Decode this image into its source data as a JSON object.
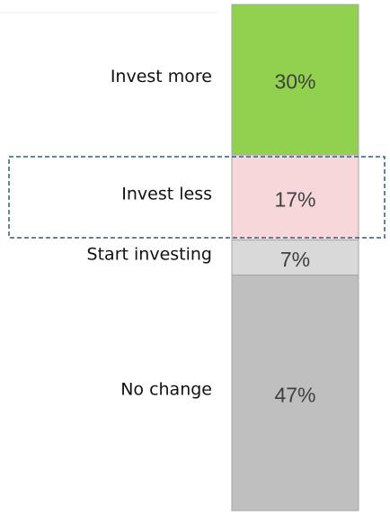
{
  "chart_data": {
    "type": "bar",
    "stacked": true,
    "categories": [
      "Invest more",
      "Invest less",
      "Start investing",
      "No change"
    ],
    "values": [
      30,
      17,
      7,
      47
    ],
    "value_labels": [
      "30%",
      "17%",
      "7%",
      "47%"
    ],
    "colors": [
      "#92d050",
      "#f8d7da",
      "#d9d9d9",
      "#bfbfbf"
    ]
  }
}
